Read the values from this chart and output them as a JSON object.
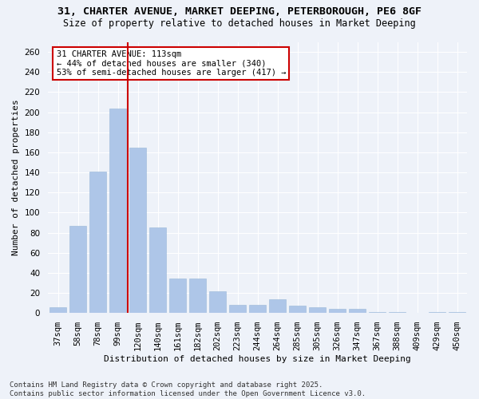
{
  "title_line1": "31, CHARTER AVENUE, MARKET DEEPING, PETERBOROUGH, PE6 8GF",
  "title_line2": "Size of property relative to detached houses in Market Deeping",
  "xlabel": "Distribution of detached houses by size in Market Deeping",
  "ylabel": "Number of detached properties",
  "categories": [
    "37sqm",
    "58sqm",
    "78sqm",
    "99sqm",
    "120sqm",
    "140sqm",
    "161sqm",
    "182sqm",
    "202sqm",
    "223sqm",
    "244sqm",
    "264sqm",
    "285sqm",
    "305sqm",
    "326sqm",
    "347sqm",
    "367sqm",
    "388sqm",
    "409sqm",
    "429sqm",
    "450sqm"
  ],
  "values": [
    6,
    87,
    141,
    204,
    165,
    85,
    34,
    34,
    22,
    8,
    8,
    14,
    7,
    6,
    4,
    4,
    1,
    1,
    0,
    1,
    1
  ],
  "bar_color": "#aec6e8",
  "bar_edge_color": "#9ab8d8",
  "highlight_line_color": "#cc0000",
  "annotation_text": "31 CHARTER AVENUE: 113sqm\n← 44% of detached houses are smaller (340)\n53% of semi-detached houses are larger (417) →",
  "annotation_box_color": "#ffffff",
  "annotation_box_edge": "#cc0000",
  "ylim": [
    0,
    270
  ],
  "yticks": [
    0,
    20,
    40,
    60,
    80,
    100,
    120,
    140,
    160,
    180,
    200,
    220,
    240,
    260
  ],
  "footer_line1": "Contains HM Land Registry data © Crown copyright and database right 2025.",
  "footer_line2": "Contains public sector information licensed under the Open Government Licence v3.0.",
  "background_color": "#eef2f9",
  "grid_color": "#ffffff",
  "title_fontsize": 9.5,
  "subtitle_fontsize": 8.5,
  "axis_label_fontsize": 8,
  "tick_fontsize": 7.5,
  "footer_fontsize": 6.5,
  "annot_fontsize": 7.5
}
